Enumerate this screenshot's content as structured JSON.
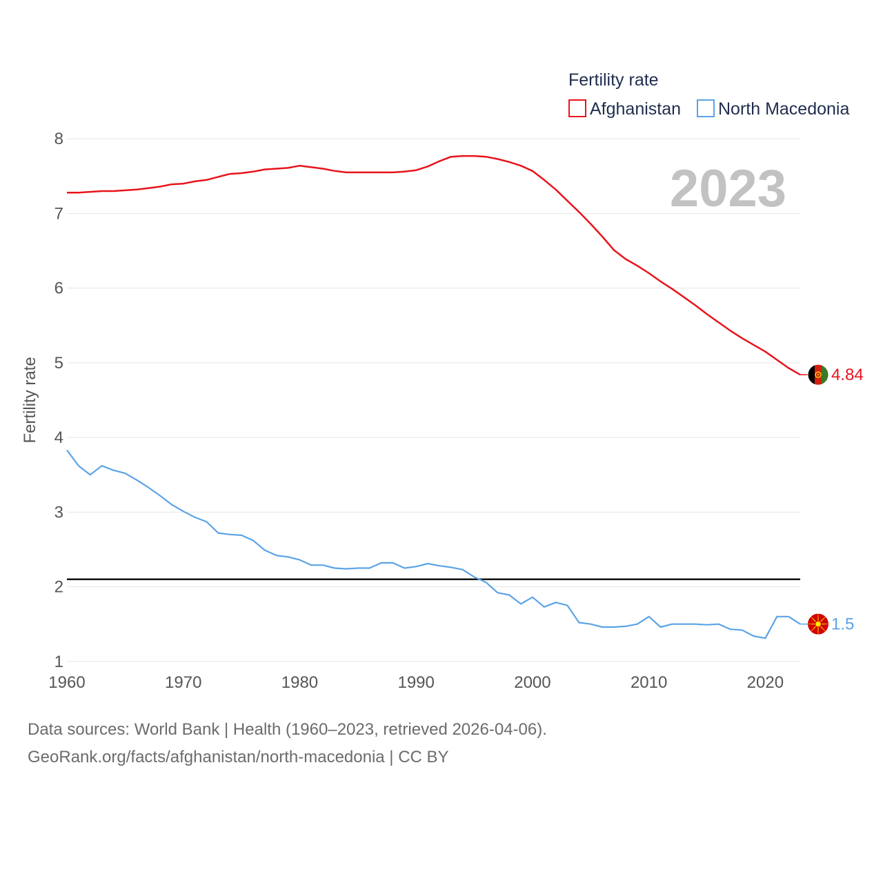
{
  "chart_data": {
    "type": "line",
    "legend_title": "Fertility rate",
    "ylabel": "Fertility rate",
    "xlabel": "",
    "year_label": "2023",
    "xlim": [
      1960,
      2023
    ],
    "ylim": [
      0.85,
      8.15
    ],
    "x_ticks": [
      1960,
      1970,
      1980,
      1990,
      2000,
      2010,
      2020
    ],
    "y_ticks": [
      1,
      2,
      3,
      4,
      5,
      6,
      7,
      8
    ],
    "reference_line": 2.1,
    "legend_position": "top-right",
    "x": [
      1960,
      1961,
      1962,
      1963,
      1964,
      1965,
      1966,
      1967,
      1968,
      1969,
      1970,
      1971,
      1972,
      1973,
      1974,
      1975,
      1976,
      1977,
      1978,
      1979,
      1980,
      1981,
      1982,
      1983,
      1984,
      1985,
      1986,
      1987,
      1988,
      1989,
      1990,
      1991,
      1992,
      1993,
      1994,
      1995,
      1996,
      1997,
      1998,
      1999,
      2000,
      2001,
      2002,
      2003,
      2004,
      2005,
      2006,
      2007,
      2008,
      2009,
      2010,
      2011,
      2012,
      2013,
      2014,
      2015,
      2016,
      2017,
      2018,
      2019,
      2020,
      2021,
      2022,
      2023
    ],
    "series": [
      {
        "name": "Afghanistan",
        "color": "#e8131b",
        "end_label": "4.84",
        "flag": "afghanistan-flag",
        "values": [
          7.28,
          7.28,
          7.29,
          7.3,
          7.3,
          7.31,
          7.32,
          7.34,
          7.36,
          7.39,
          7.4,
          7.43,
          7.45,
          7.49,
          7.53,
          7.54,
          7.56,
          7.59,
          7.6,
          7.61,
          7.64,
          7.62,
          7.6,
          7.57,
          7.55,
          7.55,
          7.55,
          7.55,
          7.55,
          7.56,
          7.58,
          7.63,
          7.7,
          7.76,
          7.77,
          7.77,
          7.76,
          7.73,
          7.69,
          7.64,
          7.57,
          7.45,
          7.32,
          7.17,
          7.02,
          6.86,
          6.69,
          6.51,
          6.39,
          6.3,
          6.2,
          6.09,
          5.99,
          5.88,
          5.77,
          5.65,
          5.54,
          5.43,
          5.33,
          5.24,
          5.15,
          5.04,
          4.93,
          4.84
        ]
      },
      {
        "name": "North Macedonia",
        "color": "#5ba3e6",
        "end_label": "1.5",
        "flag": "north-macedonia-flag",
        "values": [
          3.83,
          3.62,
          3.5,
          3.62,
          3.56,
          3.52,
          3.43,
          3.33,
          3.22,
          3.1,
          3.01,
          2.93,
          2.87,
          2.72,
          2.7,
          2.69,
          2.62,
          2.49,
          2.42,
          2.4,
          2.36,
          2.29,
          2.29,
          2.25,
          2.24,
          2.25,
          2.25,
          2.32,
          2.32,
          2.25,
          2.27,
          2.31,
          2.28,
          2.26,
          2.23,
          2.13,
          2.06,
          1.92,
          1.89,
          1.77,
          1.86,
          1.73,
          1.79,
          1.75,
          1.52,
          1.5,
          1.46,
          1.46,
          1.47,
          1.5,
          1.6,
          1.46,
          1.5,
          1.5,
          1.5,
          1.49,
          1.5,
          1.43,
          1.42,
          1.34,
          1.31,
          1.6,
          1.6,
          1.5
        ]
      }
    ]
  },
  "footer": {
    "sources": "Data sources: World Bank | Health (1960–2023, retrieved 2026-04-06).",
    "link": "GeoRank.org/facts/afghanistan/north-macedonia | CC BY"
  }
}
